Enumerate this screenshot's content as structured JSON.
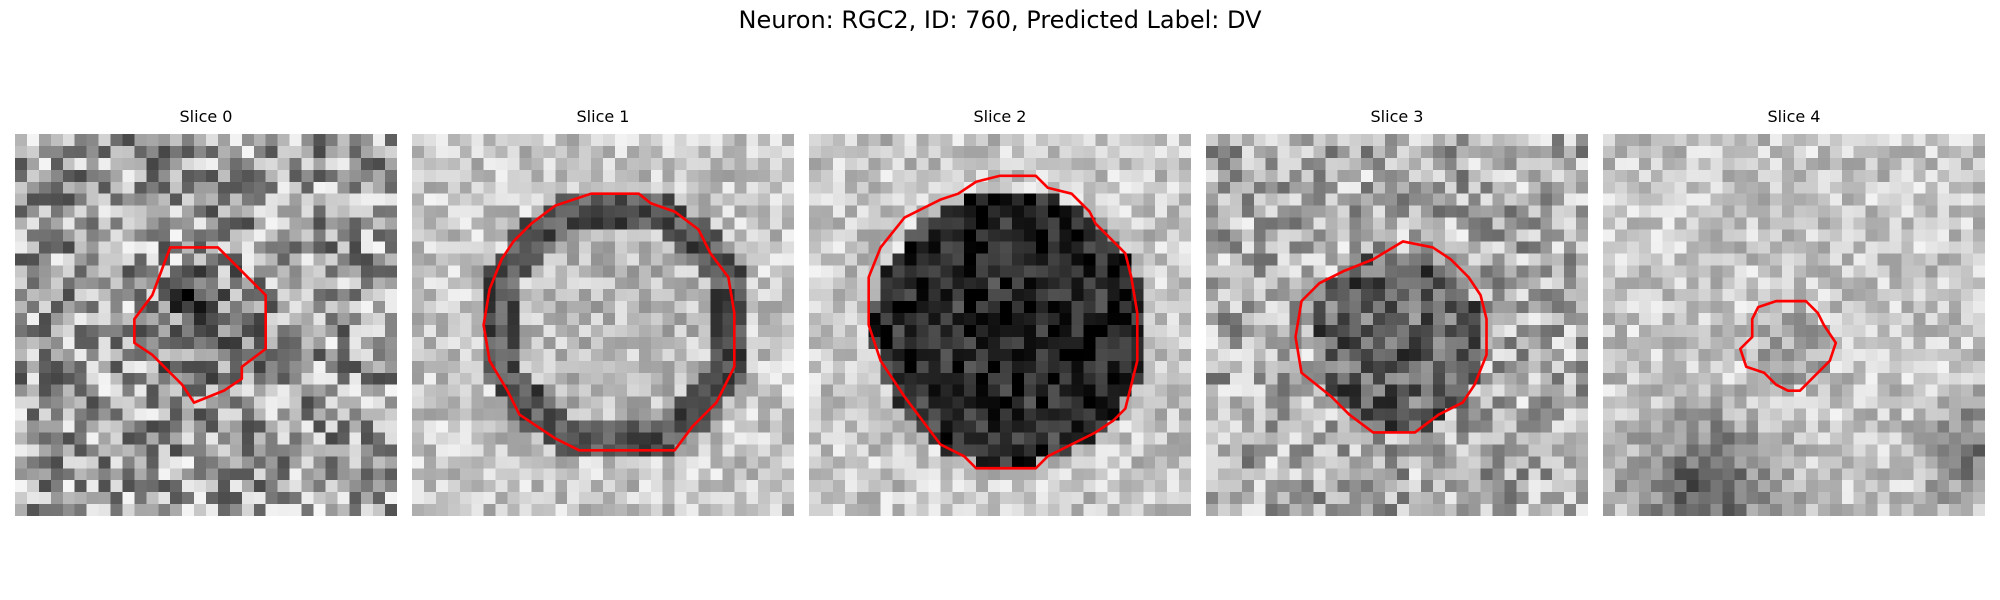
{
  "figure": {
    "title": "Neuron: RGC2, ID: 760, Predicted Label: DV"
  },
  "contour_color": "#ff0000",
  "panels": [
    {
      "label": "Slice 0",
      "grid_size": 32,
      "background": "noisy-gray",
      "blob": "dark-small",
      "contour": [
        [
          13,
          9.5
        ],
        [
          17,
          9.5
        ],
        [
          21,
          13.5
        ],
        [
          21,
          18
        ],
        [
          19,
          19.5
        ],
        [
          19,
          20.5
        ],
        [
          17.5,
          21.5
        ],
        [
          15,
          22.5
        ],
        [
          14,
          21
        ],
        [
          11.5,
          18.5
        ],
        [
          10,
          17.5
        ],
        [
          10,
          15.5
        ],
        [
          11.5,
          13.5
        ]
      ]
    },
    {
      "label": "Slice 1",
      "grid_size": 32,
      "background": "bright-gray",
      "blob": "ring",
      "contour": [
        [
          15,
          5
        ],
        [
          19,
          5
        ],
        [
          20,
          5.8
        ],
        [
          22,
          6.5
        ],
        [
          24,
          8
        ],
        [
          25,
          10
        ],
        [
          26.5,
          12
        ],
        [
          27,
          15
        ],
        [
          27,
          19.5
        ],
        [
          25.5,
          22.5
        ],
        [
          23.5,
          24.5
        ],
        [
          22,
          26.5
        ],
        [
          14,
          26.5
        ],
        [
          12,
          25.5
        ],
        [
          9,
          23.5
        ],
        [
          8,
          21.5
        ],
        [
          6.5,
          19
        ],
        [
          6,
          16
        ],
        [
          6.5,
          13
        ],
        [
          7.5,
          10.5
        ],
        [
          8.5,
          9
        ],
        [
          10,
          7.5
        ],
        [
          12,
          6
        ]
      ]
    },
    {
      "label": "Slice 2",
      "grid_size": 32,
      "background": "bright-gray",
      "blob": "dark-large",
      "contour": [
        [
          11,
          5.5
        ],
        [
          12.5,
          5
        ],
        [
          14,
          4
        ],
        [
          16,
          3.5
        ],
        [
          19,
          3.5
        ],
        [
          20,
          4.5
        ],
        [
          22,
          5
        ],
        [
          23.5,
          6.5
        ],
        [
          24,
          7.5
        ],
        [
          25,
          8.5
        ],
        [
          26.5,
          10
        ],
        [
          27,
          12
        ],
        [
          27.5,
          15
        ],
        [
          27.5,
          19
        ],
        [
          27,
          21
        ],
        [
          26.5,
          23
        ],
        [
          25.5,
          24
        ],
        [
          24,
          25
        ],
        [
          22,
          26
        ],
        [
          20,
          27
        ],
        [
          19,
          28
        ],
        [
          14,
          28
        ],
        [
          13,
          27
        ],
        [
          11,
          26
        ],
        [
          9.5,
          24
        ],
        [
          8,
          22
        ],
        [
          6,
          19
        ],
        [
          5,
          16
        ],
        [
          5,
          12
        ],
        [
          6,
          9.5
        ],
        [
          8,
          7
        ],
        [
          10,
          6
        ]
      ]
    },
    {
      "label": "Slice 3",
      "grid_size": 32,
      "background": "mid-gray",
      "blob": "dark-medium",
      "contour": [
        [
          14,
          10.5
        ],
        [
          16.5,
          9
        ],
        [
          19,
          9.5
        ],
        [
          20.5,
          10.5
        ],
        [
          22,
          12
        ],
        [
          23,
          13.5
        ],
        [
          23.5,
          15.5
        ],
        [
          23.5,
          18.5
        ],
        [
          22.5,
          21
        ],
        [
          21.5,
          22.5
        ],
        [
          19.5,
          23.5
        ],
        [
          17.5,
          25
        ],
        [
          14,
          25
        ],
        [
          12,
          23.5
        ],
        [
          10.5,
          22
        ],
        [
          8,
          20
        ],
        [
          7.5,
          17
        ],
        [
          8,
          14
        ],
        [
          9.5,
          12.5
        ],
        [
          11.5,
          11.5
        ]
      ]
    },
    {
      "label": "Slice 4",
      "grid_size": 32,
      "background": "light-top-dark-bottom",
      "blob": "faint-small",
      "contour": [
        [
          13,
          14.5
        ],
        [
          14.5,
          14
        ],
        [
          17,
          14
        ],
        [
          18,
          15
        ],
        [
          18.5,
          16
        ],
        [
          19.5,
          17.5
        ],
        [
          19,
          19
        ],
        [
          17.5,
          20.5
        ],
        [
          16.5,
          21.5
        ],
        [
          15.5,
          21.5
        ],
        [
          14.5,
          21
        ],
        [
          13.5,
          20
        ],
        [
          12,
          19.5
        ],
        [
          11.5,
          18
        ],
        [
          12.5,
          17
        ],
        [
          12.5,
          15.5
        ]
      ]
    }
  ]
}
